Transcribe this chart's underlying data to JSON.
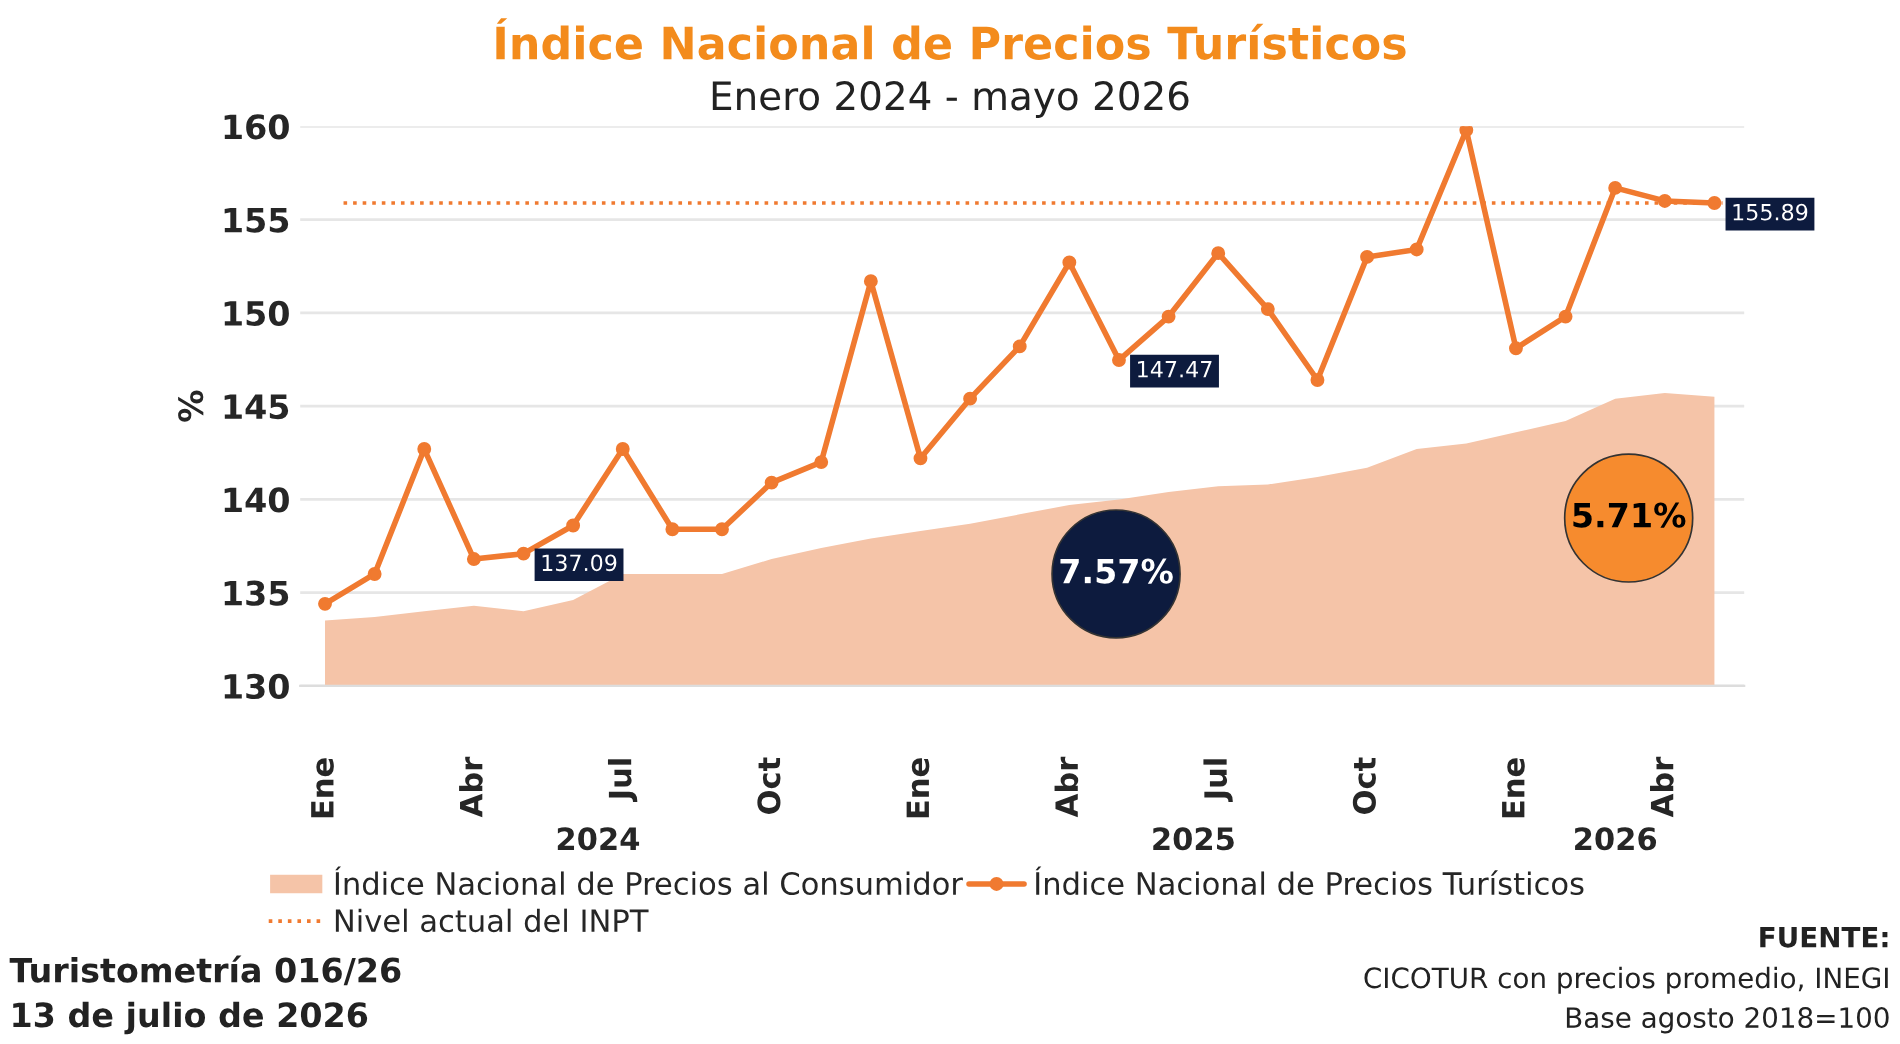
{
  "chart_data": {
    "type": "line",
    "title": "Índice Nacional de Precios Turísticos",
    "subtitle": "Enero 2024 - mayo 2026",
    "ylabel": "%",
    "categories": [
      "Ene",
      null,
      null,
      "Abr",
      null,
      null,
      "Jul",
      null,
      null,
      "Oct",
      null,
      null,
      "Ene",
      null,
      null,
      "Abr",
      null,
      null,
      "Jul",
      null,
      null,
      "Oct",
      null,
      null,
      "Ene",
      null,
      null,
      "Abr",
      null
    ],
    "series": [
      {
        "name": "Índice Nacional de Precios al Consumidor",
        "type": "area",
        "color": "#f5c4a8",
        "values": [
          133.5,
          133.7,
          134.0,
          134.3,
          134.0,
          134.6,
          136.0,
          136.0,
          136.0,
          136.8,
          137.4,
          137.9,
          138.3,
          138.7,
          139.2,
          139.7,
          140.0,
          140.4,
          140.7,
          140.8,
          141.2,
          141.7,
          142.7,
          143.0,
          143.6,
          144.2,
          145.4,
          145.7,
          145.5
        ]
      },
      {
        "name": "Índice Nacional de Precios Turísticos",
        "color": "#f07a30",
        "marker": "circle",
        "values": [
          134.4,
          136.0,
          142.7,
          136.8,
          137.09,
          138.6,
          142.7,
          138.4,
          138.4,
          140.9,
          142.0,
          151.7,
          142.2,
          145.4,
          148.2,
          152.7,
          147.47,
          149.8,
          153.2,
          150.2,
          146.4,
          153.0,
          153.4,
          159.8,
          148.1,
          149.8,
          156.7,
          156.0,
          155.89
        ],
        "value_labels": [
          null,
          null,
          null,
          null,
          "137.09",
          null,
          null,
          null,
          null,
          null,
          null,
          null,
          null,
          null,
          null,
          null,
          "147.47",
          null,
          null,
          null,
          null,
          null,
          null,
          null,
          null,
          null,
          null,
          null,
          "155.89"
        ]
      }
    ],
    "ref_lines": [
      {
        "axis": "y",
        "value": 155.89,
        "label": "Nivel actual del INPT",
        "color": "#f07a30",
        "line_style": "dotted"
      }
    ],
    "ylim": [
      130,
      160
    ],
    "yticks": [
      130,
      135,
      140,
      145,
      150,
      155,
      160
    ],
    "grid": "y",
    "legend": "bottom",
    "annotations": [
      "7.57%",
      "5.71%",
      "2024",
      "2025",
      "2026",
      "Turistometría 016/26",
      "13 de julio de 2026",
      "FUENTE:",
      "CICOTUR con precios promedio, INEGI",
      "Base agosto 2018=100"
    ]
  }
}
